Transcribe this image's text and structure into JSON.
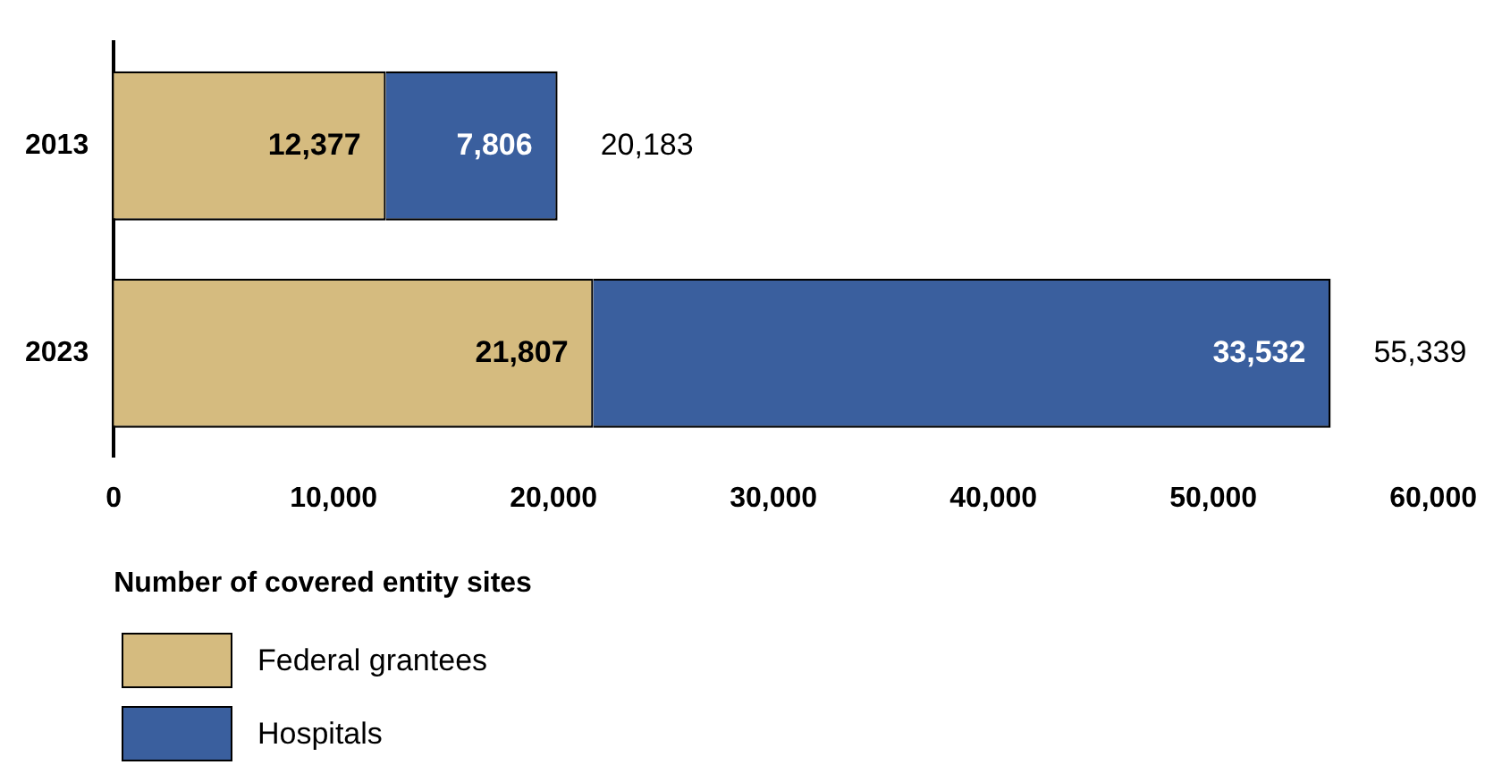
{
  "chart_data": {
    "type": "bar",
    "orientation": "horizontal",
    "stacked": true,
    "categories": [
      "2013",
      "2023"
    ],
    "series": [
      {
        "name": "Federal grantees",
        "color": "#d5bb7f",
        "values": [
          12377,
          21807
        ],
        "value_labels": [
          "12,377",
          "21,807"
        ]
      },
      {
        "name": "Hospitals",
        "color": "#3a5f9e",
        "values": [
          7806,
          33532
        ],
        "value_labels": [
          "7,806",
          "33,532"
        ]
      }
    ],
    "xlim": [
      0,
      60000
    ],
    "xticks": [
      0,
      {
        "value": 10000,
        "label": "10,000"
      },
      {
        "value": 20000,
        "label": "20,000"
      },
      {
        "value": 30000,
        "label": "30,000"
      },
      {
        "value": 40000,
        "label": "40,000"
      },
      {
        "value": 50000,
        "label": "50,000"
      },
      {
        "value": 60000,
        "label": "60,000"
      }
    ],
    "xlabel": "Number of covered entity sites",
    "totals": [
      "20,183",
      "55,339"
    ],
    "grid": false,
    "legend": "bottom left"
  }
}
